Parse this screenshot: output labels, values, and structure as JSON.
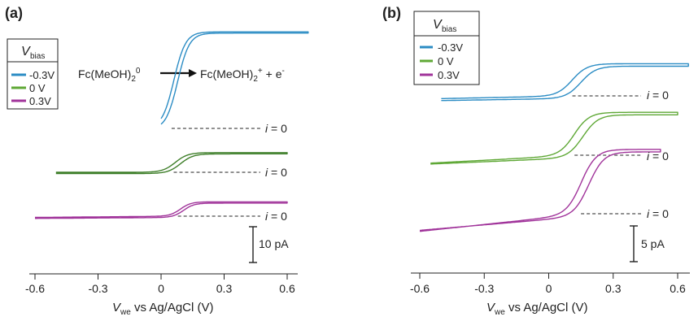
{
  "chart_data": [
    {
      "panel_label": "(a)",
      "type": "line",
      "xlabel_main": "V",
      "xlabel_sub": "we",
      "xlabel_rest": " vs Ag/AgCl (V)",
      "xlim": [
        -0.6,
        0.6
      ],
      "xticks": [
        -0.6,
        -0.3,
        0,
        0.3,
        0.6
      ],
      "xtick_labels": [
        "-0.6",
        "-0.3",
        "0",
        "0.3",
        "0.6"
      ],
      "legend": {
        "title_main": "V",
        "title_sub": "bias",
        "entries": [
          {
            "label": "-0.3V",
            "color": "#2b8cc4"
          },
          {
            "label": "0 V",
            "color": "#5fa836"
          },
          {
            "label": "0.3V",
            "color": "#a0339a"
          }
        ]
      },
      "annotation": {
        "left_main": "Fc(MeOH)",
        "left_sub": "2",
        "left_sup": "0",
        "right_main": "Fc(MeOH)",
        "right_sub": "2",
        "right_sup": "+",
        "right_tail": " + e",
        "right_tail_sup": "-"
      },
      "zero_label": "i = 0",
      "scale_bar": {
        "label": "10 pA",
        "value_pA": 10
      },
      "series": [
        {
          "name": "-0.3V",
          "color": "#2b8cc4",
          "x_start": 0.0,
          "x_end": 0.7,
          "half_wave": 0.07,
          "width": 0.028,
          "plateau_pA": 27.0,
          "baseline_slope": 0.0,
          "hysteresis": 0.018
        },
        {
          "name": "0 V",
          "color": "#3f7f2a",
          "x_start": -0.5,
          "x_end": 0.6,
          "half_wave": 0.08,
          "width": 0.03,
          "plateau_pA": 5.5,
          "baseline_slope": 0.0,
          "hysteresis": 0.025
        },
        {
          "name": "0.3V",
          "color": "#a0339a",
          "x_start": -0.6,
          "x_end": 0.6,
          "half_wave": 0.1,
          "width": 0.025,
          "plateau_pA": 4.0,
          "baseline_slope": 0.5,
          "hysteresis": 0.015
        }
      ]
    },
    {
      "panel_label": "(b)",
      "type": "line",
      "xlabel_main": "V",
      "xlabel_sub": "we",
      "xlabel_rest": " vs Ag/AgCl (V)",
      "xlim": [
        -0.6,
        0.6
      ],
      "xticks": [
        -0.6,
        -0.3,
        0,
        0.3,
        0.6
      ],
      "xtick_labels": [
        "-0.6",
        "-0.3",
        "0",
        "0.3",
        "0.6"
      ],
      "legend": {
        "title_main": "V",
        "title_sub": "bias",
        "entries": [
          {
            "label": "-0.3V",
            "color": "#2b8cc4"
          },
          {
            "label": "0 V",
            "color": "#5fa836"
          },
          {
            "label": "0.3V",
            "color": "#a0339a"
          }
        ]
      },
      "zero_label": "i = 0",
      "scale_bar": {
        "label": "5 pA",
        "value_pA": 5
      },
      "series": [
        {
          "name": "-0.3V",
          "color": "#2b8cc4",
          "x_start": -0.5,
          "x_end": 0.65,
          "half_wave": 0.13,
          "width": 0.035,
          "plateau_pA": 4.5,
          "baseline_slope": 0.6,
          "hysteresis": 0.04
        },
        {
          "name": "0 V",
          "color": "#5fa836",
          "x_start": -0.55,
          "x_end": 0.6,
          "half_wave": 0.14,
          "width": 0.035,
          "plateau_pA": 6.0,
          "baseline_slope": 1.6,
          "hysteresis": 0.04
        },
        {
          "name": "0.3V",
          "color": "#a0339a",
          "x_start": -0.6,
          "x_end": 0.52,
          "half_wave": 0.17,
          "width": 0.035,
          "plateau_pA": 9.0,
          "baseline_slope": 3.2,
          "hysteresis": 0.035
        }
      ]
    }
  ]
}
